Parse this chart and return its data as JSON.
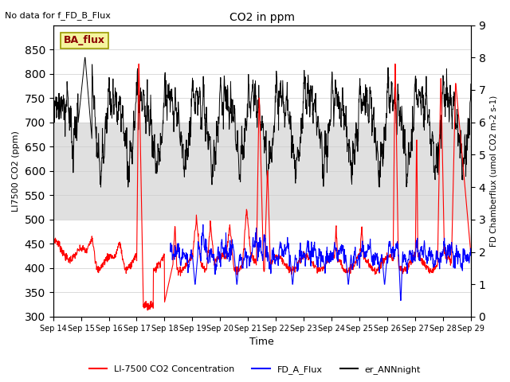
{
  "title": "CO2 in ppm",
  "top_left_text": "No data for f_FD_B_Flux",
  "box_label": "BA_flux",
  "xlabel": "Time",
  "ylabel_left": "LI7500 CO2 (ppm)",
  "ylabel_right": "FD Chamberflux (umol CO2 m-2 s-1)",
  "ylim_left": [
    300,
    900
  ],
  "ylim_right": [
    0.0,
    9.0
  ],
  "yticks_left": [
    300,
    350,
    400,
    450,
    500,
    550,
    600,
    650,
    700,
    750,
    800,
    850
  ],
  "yticks_right": [
    0.0,
    1.0,
    2.0,
    3.0,
    4.0,
    5.0,
    6.0,
    7.0,
    8.0,
    9.0
  ],
  "xtick_labels": [
    "Sep 14",
    "Sep 15",
    "Sep 16",
    "Sep 17",
    "Sep 18",
    "Sep 19",
    "Sep 20",
    "Sep 21",
    "Sep 22",
    "Sep 23",
    "Sep 24",
    "Sep 25",
    "Sep 26",
    "Sep 27",
    "Sep 28",
    "Sep 29"
  ],
  "shaded_band_yleft": [
    500,
    700
  ],
  "background_color": "#ffffff",
  "grid_color": "#cccccc",
  "n_points": 1500,
  "seed": 7
}
